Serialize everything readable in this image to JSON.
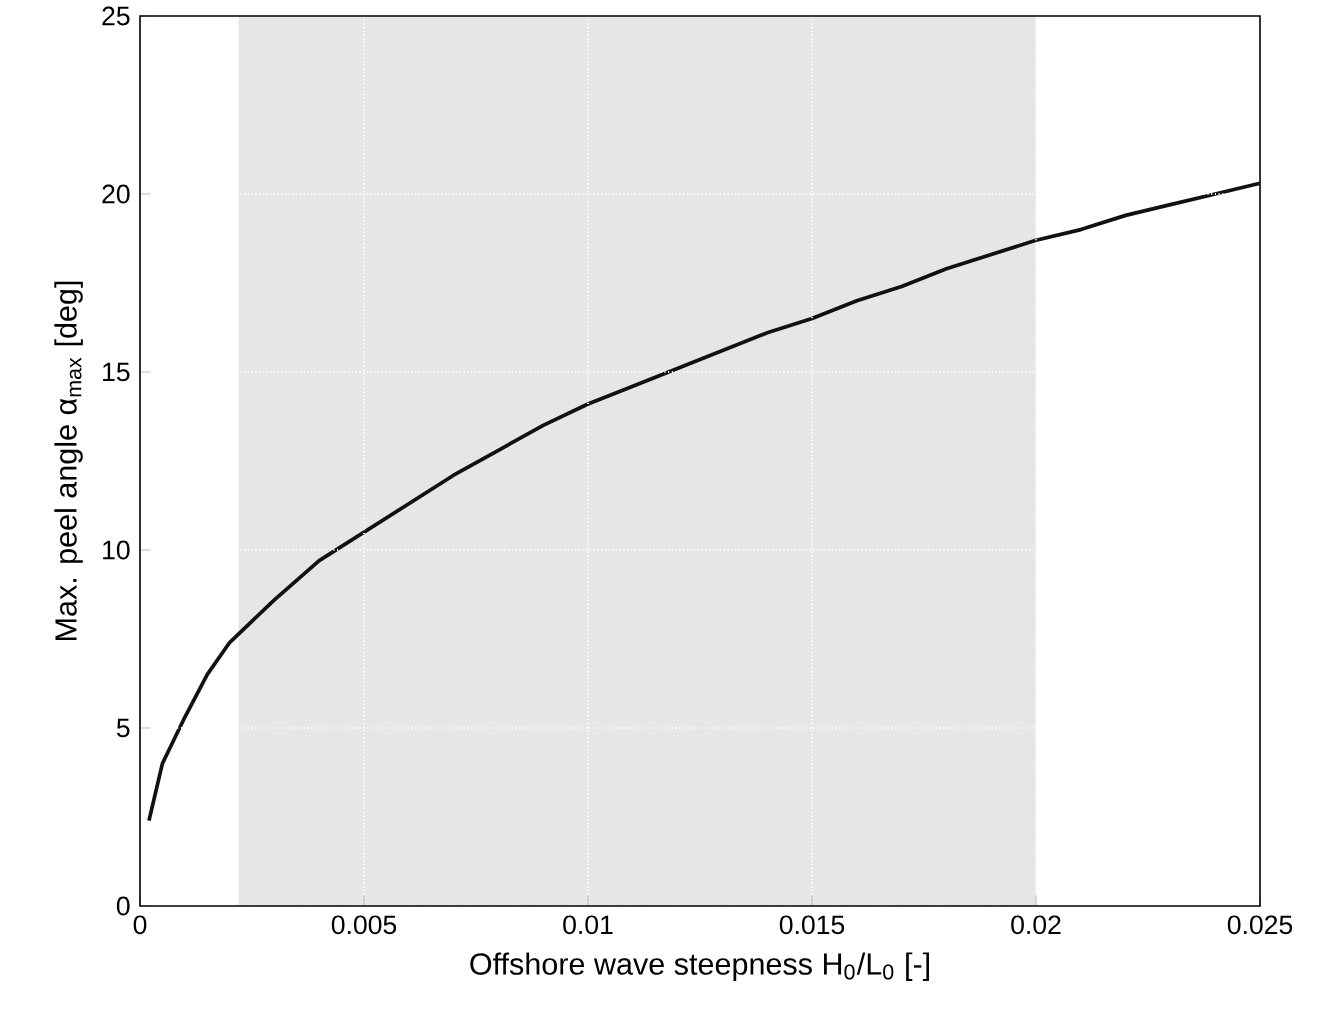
{
  "chart_data": {
    "type": "line",
    "xlabel": "Offshore wave steepness H$_{0}$/L$_{0}$ [-]",
    "ylabel": "Max. peel angle α$_{max}$ [deg]",
    "x": [
      0.0002,
      0.0005,
      0.001,
      0.0015,
      0.002,
      0.003,
      0.004,
      0.005,
      0.006,
      0.007,
      0.008,
      0.009,
      0.01,
      0.011,
      0.012,
      0.013,
      0.014,
      0.015,
      0.016,
      0.017,
      0.018,
      0.019,
      0.02,
      0.021,
      0.022,
      0.023,
      0.024,
      0.025
    ],
    "series": [
      {
        "color": "#111111",
        "values": [
          2.4,
          4.0,
          5.3,
          6.5,
          7.4,
          8.6,
          9.7,
          10.5,
          11.3,
          12.1,
          12.8,
          13.5,
          14.1,
          14.6,
          15.1,
          15.6,
          16.1,
          16.5,
          17.0,
          17.4,
          17.9,
          18.3,
          18.7,
          19.0,
          19.4,
          19.7,
          20.0,
          20.3
        ]
      }
    ],
    "xlim": [
      0,
      0.025
    ],
    "ylim": [
      0,
      25
    ],
    "xticks": [
      0,
      0.005,
      0.01,
      0.015,
      0.02,
      0.025
    ],
    "yticks": [
      0,
      5,
      10,
      15,
      20,
      25
    ],
    "bands": [
      {
        "axis": "x",
        "from": 0.0022,
        "to": 0.02,
        "color": "#e6e6e6"
      }
    ],
    "grid": true,
    "marker": "none",
    "line_style": "solid"
  }
}
